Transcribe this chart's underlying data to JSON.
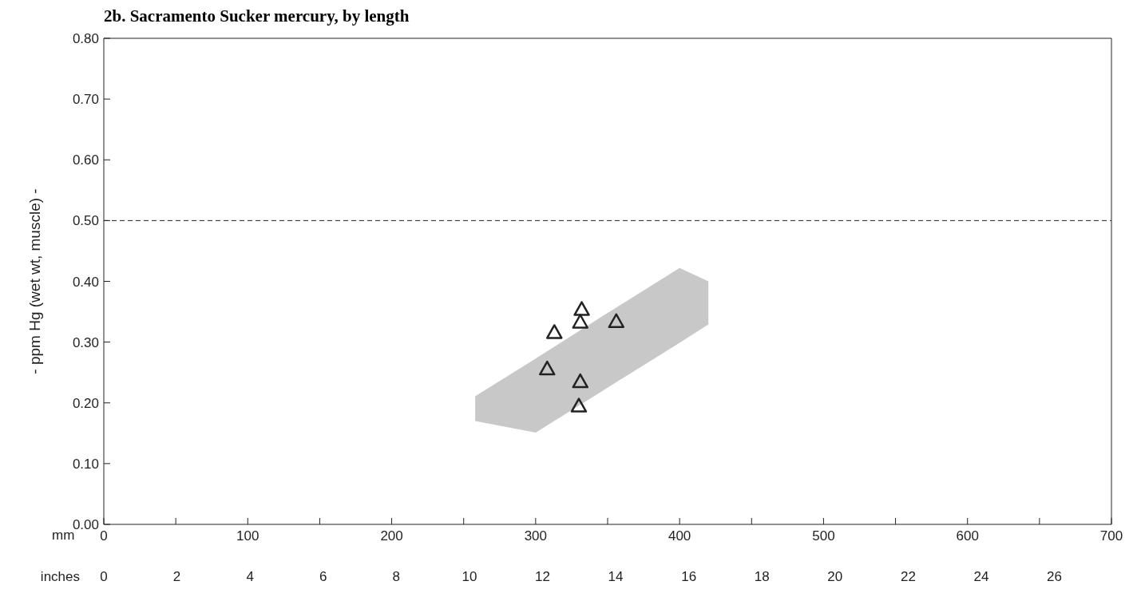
{
  "chart_data": {
    "type": "scatter",
    "title": "2b.  Sacramento Sucker mercury, by length",
    "xlabel": "mm",
    "x2label": "inches",
    "ylabel": "- ppm Hg (wet wt, muscle) -",
    "xlim": [
      0,
      700
    ],
    "xticks": [
      0,
      {
        "value": 50,
        "label": null
      },
      100,
      {
        "value": 150,
        "label": null
      },
      200,
      {
        "value": 250,
        "label": null
      },
      300,
      {
        "value": 350,
        "label": null
      },
      400,
      {
        "value": 450,
        "label": null
      },
      500,
      {
        "value": 550,
        "label": null
      },
      600,
      {
        "value": 650,
        "label": null
      },
      700
    ],
    "x2lim": [
      0,
      27.56
    ],
    "x2ticks": [
      0,
      2,
      4,
      6,
      8,
      10,
      12,
      14,
      16,
      18,
      20,
      22,
      24,
      26
    ],
    "ylim": [
      0,
      0.8
    ],
    "yticks": [
      {
        "value": 0,
        "label": "0.00"
      },
      {
        "value": 0.1,
        "label": "0.10"
      },
      {
        "value": 0.2,
        "label": "0.20"
      },
      {
        "value": 0.3,
        "label": "0.30"
      },
      {
        "value": 0.4,
        "label": "0.40"
      },
      {
        "value": 0.5,
        "label": "0.50"
      },
      {
        "value": 0.6,
        "label": "0.60"
      },
      {
        "value": 0.7,
        "label": "0.70"
      },
      {
        "value": 0.8,
        "label": "0.80"
      }
    ],
    "marker": "triangle",
    "grid": false,
    "legend": false,
    "ref_lines": [
      {
        "axis": "y",
        "value": 0.5,
        "line_style": "dashed",
        "color": "#222222"
      }
    ],
    "series": [
      {
        "type": "area",
        "color": "#c8c8c8",
        "x": [
          258,
          300,
          350,
          400,
          420
        ],
        "values": [
          null,
          null,
          null,
          null,
          null
        ],
        "lower": [
          0.17,
          0.151,
          0.225,
          0.299,
          0.329
        ],
        "upper": [
          0.211,
          0.273,
          0.348,
          0.422,
          0.4
        ]
      },
      {
        "color": "#222222",
        "x": [
          332,
          331,
          356,
          313,
          308,
          331,
          330
        ],
        "values": [
          0.354,
          0.333,
          0.334,
          0.316,
          0.256,
          0.235,
          0.195
        ]
      }
    ]
  }
}
